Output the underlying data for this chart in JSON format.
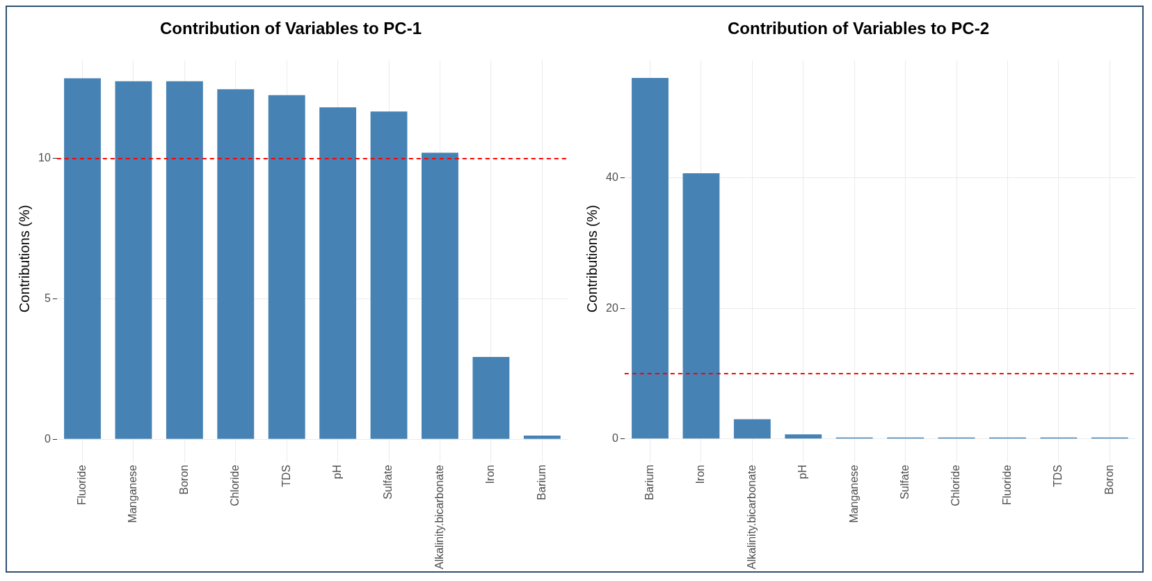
{
  "chart_data": [
    {
      "type": "bar",
      "title": "Contribution of Variables to PC-1",
      "ylabel": "Contributions (%)",
      "categories": [
        "Fluoride",
        "Manganese",
        "Boron",
        "Chloride",
        "TDS",
        "pH",
        "Sulfate",
        "Alkalinity.bicarbonate",
        "Iron",
        "Barium"
      ],
      "values": [
        12.86,
        12.76,
        12.76,
        12.47,
        12.26,
        11.83,
        11.68,
        10.21,
        2.93,
        0.13
      ],
      "color": "#4682b4",
      "ylim": [
        -0.64,
        13.5
      ],
      "yticks": [
        0,
        5,
        10
      ],
      "grid": true,
      "ref_lines": [
        {
          "axis": "y",
          "value": 10,
          "color": "#ff0000",
          "line_style": "dashed"
        }
      ]
    },
    {
      "type": "bar",
      "title": "Contribution of Variables to PC-2",
      "ylabel": "Contributions (%)",
      "categories": [
        "Barium",
        "Iron",
        "Alkalinity.bicarbonate",
        "pH",
        "Manganese",
        "Sulfate",
        "Chloride",
        "Fluoride",
        "TDS",
        "Boron"
      ],
      "values": [
        55.3,
        40.7,
        3.0,
        0.7,
        0.2,
        0.2,
        0.2,
        0.2,
        0.2,
        0.2
      ],
      "color": "#4682b4",
      "ylim": [
        -2.8,
        58
      ],
      "yticks": [
        0,
        20,
        40
      ],
      "grid": true,
      "ref_lines": [
        {
          "axis": "y",
          "value": 10,
          "color": "#ff0000",
          "line_style": "dashed"
        }
      ]
    }
  ]
}
